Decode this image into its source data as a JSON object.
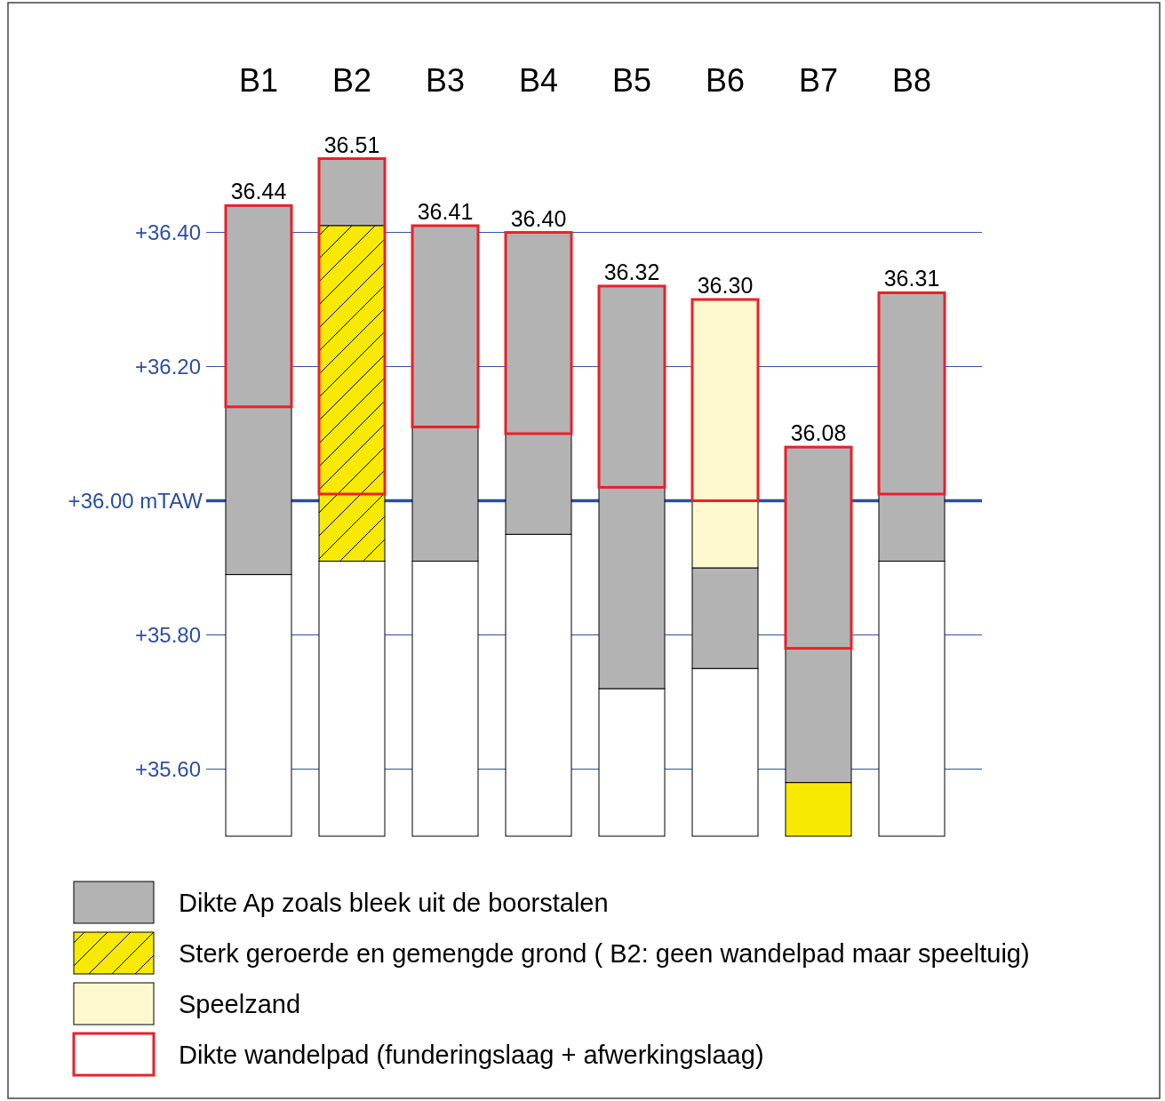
{
  "chart_data": {
    "type": "bar",
    "categories": [
      "B1",
      "B2",
      "B3",
      "B4",
      "B5",
      "B6",
      "B7",
      "B8"
    ],
    "ylim": [
      35.5,
      36.51
    ],
    "yticks": [
      {
        "value": 35.6,
        "label": "+35.60"
      },
      {
        "value": 35.8,
        "label": "+35.80"
      },
      {
        "value": 36.2,
        "label": "+36.20"
      },
      {
        "value": 36.4,
        "label": "+36.40"
      }
    ],
    "grid": "y",
    "legend": "bottom",
    "ref_lines": [
      {
        "axis": "y",
        "value": 36.0,
        "label": "+36.00 mTAW",
        "color": "#2a4ea0"
      }
    ],
    "series": [
      {
        "color": "#ffffff",
        "base": [
          35.5,
          35.5,
          35.5,
          35.5,
          35.5,
          35.5,
          null,
          35.5
        ],
        "values": [
          0.39,
          0.41,
          0.41,
          0.45,
          0.22,
          0.25,
          null,
          0.41
        ]
      },
      {
        "color": "#f7e900",
        "base": [
          null,
          null,
          null,
          null,
          null,
          null,
          35.5,
          null
        ],
        "values": [
          null,
          null,
          null,
          null,
          null,
          null,
          0.08,
          null
        ]
      },
      {
        "name": "Dikte Ap zoals bleek uit de boorstalen",
        "color": "#b3b3b3",
        "base": [
          35.89,
          36.41,
          35.91,
          35.95,
          35.72,
          35.75,
          35.58,
          35.91
        ],
        "values": [
          0.55,
          0.1,
          0.5,
          0.45,
          0.6,
          0.15,
          0.5,
          0.4
        ]
      },
      {
        "name": "Sterk geroerde en gemengde grond ( B2: geen wandelpad maar speeltuig)",
        "color": "#f7e900",
        "base": [
          null,
          35.91,
          null,
          null,
          null,
          null,
          null,
          null
        ],
        "values": [
          null,
          0.5,
          null,
          null,
          null,
          null,
          null,
          null
        ]
      },
      {
        "name": "Speelzand",
        "color": "#fdf9cf",
        "base": [
          null,
          null,
          null,
          null,
          null,
          35.9,
          null,
          null
        ],
        "values": [
          null,
          null,
          null,
          null,
          null,
          0.4,
          null,
          null
        ]
      },
      {
        "name": "Dikte wandelpad (funderingslaag + afwerkingslaag)",
        "color": "#e8212b",
        "base": [
          36.14,
          36.01,
          36.11,
          36.1,
          36.02,
          36.0,
          35.78,
          36.01
        ],
        "values": [
          0.3,
          0.5,
          0.3,
          0.3,
          0.3,
          0.3,
          0.3,
          0.3
        ]
      }
    ],
    "annotations": [
      {
        "text": "36.44",
        "x": "B1",
        "y": 36.44
      },
      {
        "text": "36.51",
        "x": "B2",
        "y": 36.51
      },
      {
        "text": "36.41",
        "x": "B3",
        "y": 36.41
      },
      {
        "text": "36.40",
        "x": "B4",
        "y": 36.4
      },
      {
        "text": "36.32",
        "x": "B5",
        "y": 36.32
      },
      {
        "text": "36.30",
        "x": "B6",
        "y": 36.3
      },
      {
        "text": "36.08",
        "x": "B7",
        "y": 36.08
      },
      {
        "text": "36.31",
        "x": "B8",
        "y": 36.31
      }
    ]
  }
}
